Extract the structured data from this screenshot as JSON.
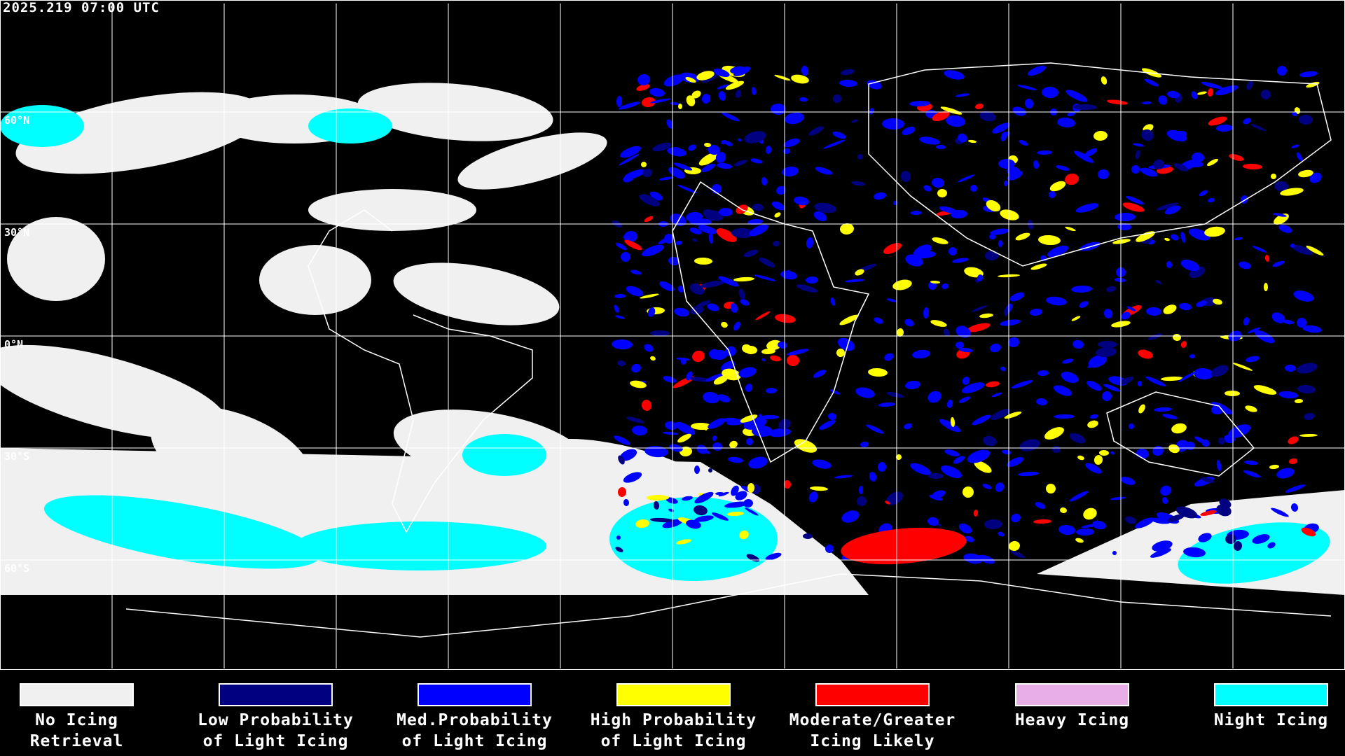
{
  "header": {
    "timestamp": "2025.219 07:00 UTC"
  },
  "map": {
    "projection": "equirectangular",
    "gridlines": true,
    "lat_labels": [
      "60°N",
      "30°N",
      "0°N",
      "30°S",
      "60°S"
    ],
    "background_color": "#000000",
    "coastline_color": "#ffffff"
  },
  "legend": {
    "items": [
      {
        "line1": "No Icing",
        "line2": "Retrieval",
        "color": "#f0f0f0"
      },
      {
        "line1": "Low Probability",
        "line2": "of Light Icing",
        "color": "#000080"
      },
      {
        "line1": "Med.Probability",
        "line2": "of Light Icing",
        "color": "#0000ff"
      },
      {
        "line1": "High Probability",
        "line2": "of Light Icing",
        "color": "#ffff00"
      },
      {
        "line1": "Moderate/Greater",
        "line2": "Icing Likely",
        "color": "#ff0000"
      },
      {
        "line1": "Heavy Icing",
        "line2": "",
        "color": "#e8aee8"
      },
      {
        "line1": "Night Icing",
        "line2": "",
        "color": "#00ffff"
      }
    ]
  }
}
